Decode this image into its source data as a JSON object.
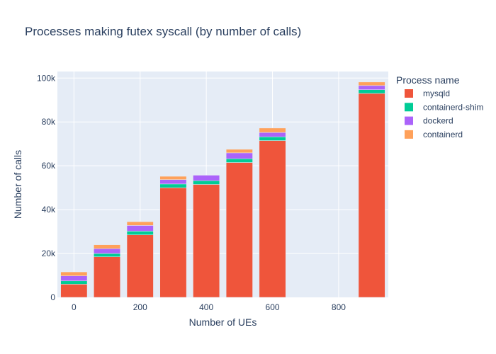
{
  "chart_data": {
    "type": "bar",
    "mode": "stacked",
    "title": "Processes making futex syscall (by number of calls)",
    "xlabel": "Number of UEs",
    "ylabel": "Number of calls",
    "x": [
      0,
      100,
      200,
      300,
      400,
      500,
      600,
      900
    ],
    "xlim": [
      -50,
      950
    ],
    "ylim": [
      0,
      103000
    ],
    "x_ticks": [
      0,
      200,
      400,
      600,
      800
    ],
    "x_tick_labels": [
      "0",
      "200",
      "400",
      "600",
      "800"
    ],
    "y_ticks": [
      0,
      20000,
      40000,
      60000,
      80000,
      100000
    ],
    "y_tick_labels": [
      "0",
      "20k",
      "40k",
      "60k",
      "80k",
      "100k"
    ],
    "grid": true,
    "legend": {
      "title": "Process name",
      "placement": "top-right-outside"
    },
    "series": [
      {
        "name": "mysqld",
        "color": "#EF553B",
        "values": [
          6000,
          18500,
          28500,
          50000,
          51500,
          61500,
          71500,
          93000
        ]
      },
      {
        "name": "containerd-shim",
        "color": "#00CC96",
        "values": [
          1500,
          1500,
          1700,
          1700,
          1700,
          1700,
          1700,
          1700
        ]
      },
      {
        "name": "dockerd",
        "color": "#AB63FA",
        "values": [
          2300,
          2200,
          2600,
          2000,
          2500,
          2700,
          2000,
          1900
        ]
      },
      {
        "name": "containerd",
        "color": "#FFA15A",
        "values": [
          1800,
          1800,
          1700,
          1500,
          0,
          1600,
          2000,
          1600
        ]
      }
    ]
  }
}
